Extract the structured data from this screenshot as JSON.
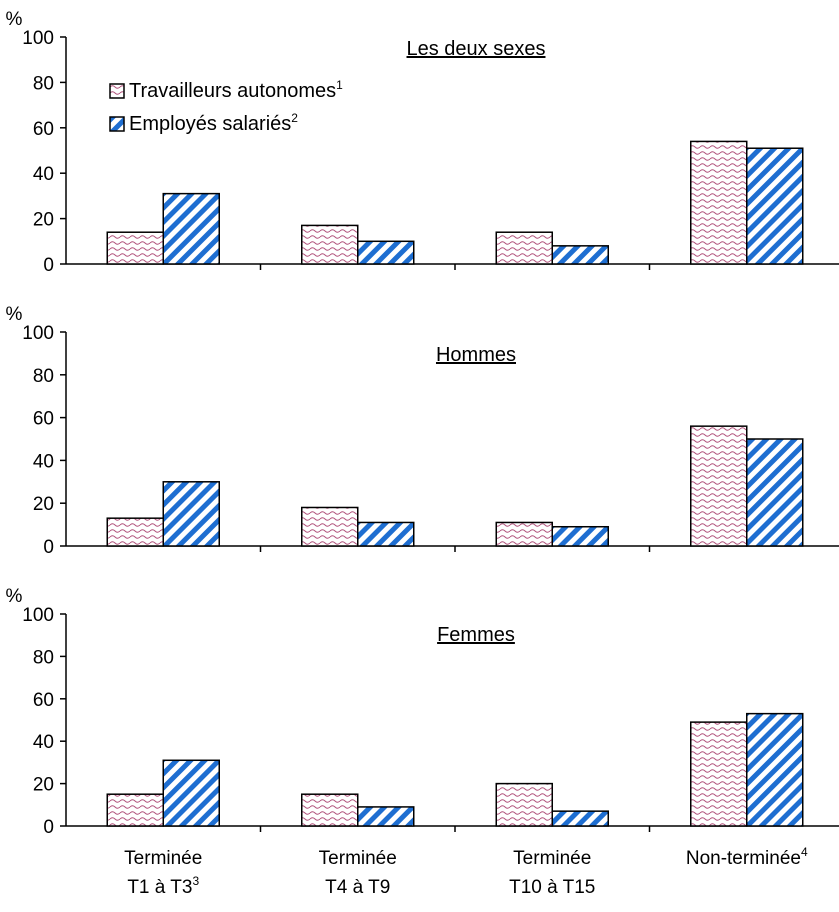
{
  "chart_data": {
    "type": "bar",
    "unit_label": "%",
    "ylim": [
      0,
      100
    ],
    "yticks": [
      0,
      20,
      40,
      60,
      80,
      100
    ],
    "categories": [
      {
        "lines": [
          "Terminée",
          "T1 à T3"
        ],
        "sup": "3"
      },
      {
        "lines": [
          "Terminée",
          "T4 à T9"
        ],
        "sup": ""
      },
      {
        "lines": [
          "Terminée",
          "T10 à T15"
        ],
        "sup": ""
      },
      {
        "lines": [
          "Non-terminée"
        ],
        "sup": "4"
      }
    ],
    "legend": [
      {
        "name": "Travailleurs autonomes",
        "sup": "1",
        "pattern": "wave",
        "color": "#b0507a"
      },
      {
        "name": "Employés salariés",
        "sup": "2",
        "pattern": "diag",
        "color": "#1e6ed1"
      }
    ],
    "panels": [
      {
        "title": "Les deux sexes",
        "series": [
          {
            "name": "Travailleurs autonomes",
            "values": [
              14,
              17,
              14,
              54
            ]
          },
          {
            "name": "Employés salariés",
            "values": [
              31,
              10,
              8,
              51
            ]
          }
        ]
      },
      {
        "title": "Hommes",
        "series": [
          {
            "name": "Travailleurs autonomes",
            "values": [
              13,
              18,
              11,
              56
            ]
          },
          {
            "name": "Employés salariés",
            "values": [
              30,
              11,
              9,
              50
            ]
          }
        ]
      },
      {
        "title": "Femmes",
        "series": [
          {
            "name": "Travailleurs autonomes",
            "values": [
              15,
              15,
              20,
              49
            ]
          },
          {
            "name": "Employés salariés",
            "values": [
              31,
              9,
              7,
              53
            ]
          }
        ]
      }
    ]
  }
}
